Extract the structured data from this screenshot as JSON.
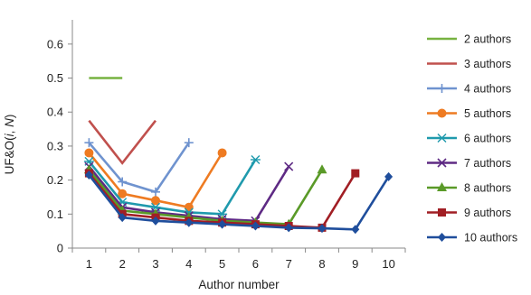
{
  "chart_data": {
    "type": "line",
    "title": "",
    "xlabel": "Author number",
    "ylabel": "UF&O(i, N)",
    "ylabel_parts": {
      "prefix": "UF&O(",
      "i": "i",
      "sep": ", ",
      "n": "N",
      "suffix": ")"
    },
    "x_ticks": [
      1,
      2,
      3,
      4,
      5,
      6,
      7,
      8,
      9,
      10
    ],
    "y_ticks": [
      0,
      0.1,
      0.2,
      0.3,
      0.4,
      0.5,
      0.6
    ],
    "y_tick_labels": [
      "0",
      "0.1",
      "0.2",
      "0.3",
      "0.4",
      "0.5",
      "0.6"
    ],
    "xlim": [
      0.5,
      10.5
    ],
    "ylim": [
      0,
      0.65
    ],
    "grid": false,
    "legend_position": "right",
    "series": [
      {
        "name": "2 authors",
        "color": "#77b240",
        "marker": "none",
        "x": [
          1,
          2
        ],
        "y": [
          0.5,
          0.5
        ]
      },
      {
        "name": "3 authors",
        "color": "#c0504d",
        "marker": "none",
        "x": [
          1,
          2,
          3
        ],
        "y": [
          0.375,
          0.25,
          0.375
        ]
      },
      {
        "name": "4 authors",
        "color": "#6f93cf",
        "marker": "plus",
        "x": [
          1,
          2,
          3,
          4
        ],
        "y": [
          0.31,
          0.195,
          0.165,
          0.31
        ]
      },
      {
        "name": "5 authors",
        "color": "#ee7b22",
        "marker": "circle",
        "x": [
          1,
          2,
          3,
          4,
          5
        ],
        "y": [
          0.28,
          0.16,
          0.14,
          0.12,
          0.28
        ]
      },
      {
        "name": "6 authors",
        "color": "#1f9aad",
        "marker": "asterisk",
        "x": [
          1,
          2,
          3,
          4,
          5,
          6
        ],
        "y": [
          0.255,
          0.135,
          0.12,
          0.105,
          0.1,
          0.26
        ]
      },
      {
        "name": "7 authors",
        "color": "#5e2a84",
        "marker": "x",
        "x": [
          1,
          2,
          3,
          4,
          5,
          6,
          7
        ],
        "y": [
          0.24,
          0.12,
          0.105,
          0.095,
          0.085,
          0.08,
          0.24
        ]
      },
      {
        "name": "8 authors",
        "color": "#5a9a28",
        "marker": "triangle",
        "x": [
          1,
          2,
          3,
          4,
          5,
          6,
          7,
          8
        ],
        "y": [
          0.23,
          0.11,
          0.1,
          0.09,
          0.08,
          0.075,
          0.07,
          0.23
        ]
      },
      {
        "name": "9 authors",
        "color": "#a11e24",
        "marker": "square",
        "x": [
          1,
          2,
          3,
          4,
          5,
          6,
          7,
          8,
          9
        ],
        "y": [
          0.22,
          0.1,
          0.09,
          0.08,
          0.075,
          0.07,
          0.065,
          0.06,
          0.22
        ]
      },
      {
        "name": "10 authors",
        "color": "#1f4e9c",
        "marker": "diamond",
        "x": [
          1,
          2,
          3,
          4,
          5,
          6,
          7,
          8,
          9,
          10
        ],
        "y": [
          0.215,
          0.09,
          0.08,
          0.075,
          0.07,
          0.065,
          0.06,
          0.058,
          0.055,
          0.21
        ]
      }
    ]
  }
}
